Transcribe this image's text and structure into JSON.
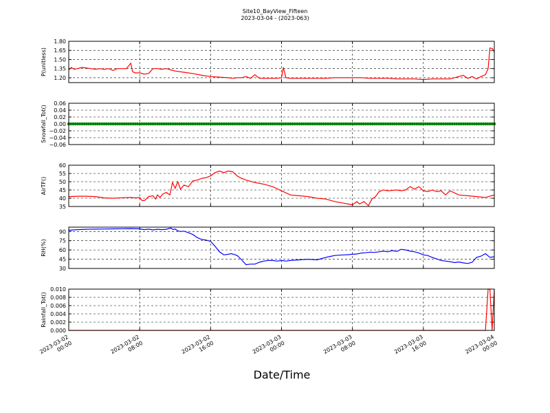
{
  "chart_data": {
    "title": "Site10_BayView_Fifteen",
    "subtitle": "2023-03-04 - (2023-063)",
    "xlabel": "Date/Time",
    "x_range_hours": [
      0,
      48
    ],
    "x_ticks": [
      {
        "h": 0,
        "line1": "2023-03-02",
        "line2": "00:00"
      },
      {
        "h": 8,
        "line1": "2023-03-02",
        "line2": "08:00"
      },
      {
        "h": 16,
        "line1": "2023-03-02",
        "line2": "16:00"
      },
      {
        "h": 24,
        "line1": "2023-03-03",
        "line2": "00:00"
      },
      {
        "h": 32,
        "line1": "2023-03-03",
        "line2": "08:00"
      },
      {
        "h": 40,
        "line1": "2023-03-03",
        "line2": "16:00"
      },
      {
        "h": 48,
        "line1": "2023-03-04",
        "line2": "00:00"
      }
    ],
    "panels": [
      {
        "id": "p",
        "type": "line",
        "ylabel": "P(unitless)",
        "color": "#ff0000",
        "marker": "none",
        "ylim": [
          1.12,
          1.8
        ],
        "yticks": [
          {
            "v": 1.2,
            "label": "1.20"
          },
          {
            "v": 1.35,
            "label": "1.35"
          },
          {
            "v": 1.5,
            "label": "1.50"
          },
          {
            "v": 1.65,
            "label": "1.65"
          },
          {
            "v": 1.8,
            "label": "1.80"
          }
        ],
        "x": [
          0,
          0.3,
          0.6,
          1,
          1.5,
          2,
          2.5,
          3,
          3.5,
          4,
          4.5,
          5,
          5.5,
          6,
          6.5,
          7,
          7.2,
          7.5,
          8,
          8.5,
          9,
          9.5,
          10,
          10.5,
          11,
          11.5,
          12,
          13,
          14,
          15,
          16,
          17,
          18,
          18.5,
          19,
          19.5,
          20,
          20.5,
          21,
          21.5,
          22,
          22.5,
          23,
          23.5,
          24,
          24.2,
          24.5,
          25,
          26,
          27,
          28,
          29,
          30,
          31,
          32,
          33,
          34,
          35,
          36,
          37,
          38,
          39,
          40,
          41,
          42,
          43,
          44,
          44.5,
          45,
          45.5,
          46,
          46.5,
          47,
          47.3,
          47.5,
          47.8,
          48
        ],
        "y": [
          1.33,
          1.37,
          1.34,
          1.35,
          1.37,
          1.36,
          1.35,
          1.34,
          1.35,
          1.34,
          1.35,
          1.32,
          1.35,
          1.35,
          1.35,
          1.44,
          1.3,
          1.28,
          1.28,
          1.26,
          1.27,
          1.35,
          1.35,
          1.34,
          1.35,
          1.33,
          1.31,
          1.29,
          1.27,
          1.24,
          1.22,
          1.21,
          1.2,
          1.19,
          1.2,
          1.2,
          1.22,
          1.19,
          1.25,
          1.19,
          1.19,
          1.19,
          1.19,
          1.19,
          1.2,
          1.37,
          1.2,
          1.19,
          1.19,
          1.19,
          1.19,
          1.19,
          1.2,
          1.2,
          1.2,
          1.2,
          1.19,
          1.19,
          1.19,
          1.18,
          1.18,
          1.18,
          1.17,
          1.18,
          1.18,
          1.18,
          1.22,
          1.24,
          1.19,
          1.22,
          1.18,
          1.22,
          1.25,
          1.35,
          1.69,
          1.68,
          1.62
        ]
      },
      {
        "id": "snowfall",
        "type": "scatter",
        "ylabel": "Snowfall_Tot()",
        "color": "#008000",
        "marker": "dot",
        "ylim": [
          -0.06,
          0.06
        ],
        "yticks": [
          {
            "v": -0.06,
            "label": "−0.06"
          },
          {
            "v": -0.04,
            "label": "−0.04"
          },
          {
            "v": -0.02,
            "label": "−0.02"
          },
          {
            "v": 0.0,
            "label": "0.00"
          },
          {
            "v": 0.02,
            "label": "0.02"
          },
          {
            "v": 0.04,
            "label": "0.04"
          },
          {
            "v": 0.06,
            "label": "0.06"
          }
        ],
        "x_start": 0,
        "x_step": 0.25,
        "x_end": 48,
        "constant_value": 0.0
      },
      {
        "id": "airtf",
        "type": "line",
        "ylabel": "AirTF()",
        "color": "#ff0000",
        "marker": "none",
        "ylim": [
          35,
          60
        ],
        "yticks": [
          {
            "v": 35,
            "label": "35"
          },
          {
            "v": 40,
            "label": "40"
          },
          {
            "v": 45,
            "label": "45"
          },
          {
            "v": 50,
            "label": "50"
          },
          {
            "v": 55,
            "label": "55"
          },
          {
            "v": 60,
            "label": "60"
          }
        ],
        "x": [
          0,
          1,
          2,
          3,
          4,
          5,
          6,
          7,
          7.5,
          8,
          8.3,
          8.6,
          9,
          9.5,
          9.8,
          10,
          10.3,
          10.6,
          11,
          11.4,
          11.7,
          12,
          12.3,
          12.6,
          13,
          13.5,
          14,
          14.5,
          15,
          15.5,
          16,
          16.5,
          17,
          17.5,
          18,
          18.5,
          19,
          19.5,
          20,
          21,
          22,
          23,
          24,
          25,
          26,
          27,
          28,
          29,
          30,
          31,
          31.5,
          32,
          32.5,
          32.8,
          33.3,
          33.8,
          34.2,
          34.6,
          35,
          35.5,
          36,
          37,
          37.5,
          38,
          38.5,
          39,
          39.5,
          40,
          40.5,
          41,
          41.5,
          42,
          42.5,
          43,
          44,
          45,
          46,
          47,
          48
        ],
        "y": [
          41,
          41.2,
          41.2,
          41,
          40.2,
          40,
          40.3,
          40.5,
          40.2,
          40.4,
          38.5,
          38.8,
          41,
          41.5,
          39.5,
          42,
          40.5,
          42.5,
          43.5,
          42,
          49.5,
          46,
          50,
          45.5,
          48,
          47,
          50.5,
          51,
          52,
          52.5,
          53.5,
          55.5,
          56.5,
          55.5,
          56.5,
          56,
          53.5,
          52,
          51,
          49.5,
          48.5,
          47,
          44.5,
          42,
          41.5,
          41,
          40,
          39.5,
          38,
          37,
          36.5,
          36,
          38,
          36.5,
          38,
          35.5,
          39.5,
          41,
          44,
          45,
          44.5,
          45,
          44.5,
          45,
          47,
          45.5,
          47,
          44.5,
          44,
          45,
          44,
          44.5,
          42,
          44.5,
          42,
          41.5,
          41,
          40.5,
          42
        ]
      },
      {
        "id": "rh",
        "type": "line",
        "ylabel": "RH(%)",
        "color": "#0000ff",
        "marker": "none",
        "ylim": [
          30,
          97
        ],
        "yticks": [
          {
            "v": 30,
            "label": "30"
          },
          {
            "v": 45,
            "label": "45"
          },
          {
            "v": 60,
            "label": "60"
          },
          {
            "v": 75,
            "label": "75"
          },
          {
            "v": 90,
            "label": "90"
          }
        ],
        "x": [
          0,
          1,
          2,
          3,
          4,
          5,
          6,
          7,
          8,
          8.5,
          9,
          9.5,
          10,
          10.5,
          11,
          11.5,
          11.8,
          12,
          12.3,
          12.6,
          13,
          13.5,
          14,
          14.5,
          15,
          15.5,
          16,
          16.5,
          17,
          17.5,
          18,
          18.3,
          18.6,
          19,
          19.5,
          20,
          20.5,
          21,
          21.5,
          22,
          22.5,
          23,
          23.5,
          24,
          24.5,
          25,
          26,
          27,
          28,
          29,
          29.5,
          30,
          30.5,
          31,
          31.5,
          32,
          32.5,
          33,
          33.5,
          34,
          34.5,
          35,
          35.5,
          36,
          36.5,
          37,
          37.5,
          38,
          38.5,
          39,
          39.5,
          40,
          40.5,
          40.8,
          41.2,
          41.6,
          42,
          42.5,
          43,
          43.5,
          44,
          44.5,
          45,
          45.5,
          46,
          46.5,
          47,
          47.5,
          48
        ],
        "y": [
          92,
          93,
          93.5,
          93.8,
          94,
          94.2,
          94.4,
          94.6,
          94.2,
          93,
          93.8,
          92.5,
          93.5,
          93,
          93.5,
          95.5,
          93,
          94,
          91,
          90,
          90.5,
          88,
          85,
          80,
          77,
          76,
          74,
          66,
          57,
          52,
          53,
          54,
          53,
          51,
          44,
          36,
          37,
          37,
          40,
          42,
          43,
          43,
          42,
          43,
          42,
          43,
          44,
          45,
          44,
          48,
          49.5,
          51,
          51.5,
          52,
          52.3,
          53,
          53.5,
          55,
          55.5,
          56.5,
          56,
          57,
          58,
          57,
          59,
          57.5,
          61,
          60,
          58,
          57,
          55,
          52,
          51,
          49,
          47,
          45,
          43,
          42,
          41,
          39.5,
          40.5,
          39,
          38,
          40,
          48,
          50,
          54,
          48,
          49
        ]
      },
      {
        "id": "rainfall",
        "type": "line",
        "ylabel": "Rainfall_Tot()",
        "color": "#ff0000",
        "marker": "none",
        "ylim": [
          0,
          0.01
        ],
        "yticks": [
          {
            "v": 0.0,
            "label": "0.000"
          },
          {
            "v": 0.002,
            "label": "0.002"
          },
          {
            "v": 0.004,
            "label": "0.004"
          },
          {
            "v": 0.006,
            "label": "0.006"
          },
          {
            "v": 0.008,
            "label": "0.008"
          },
          {
            "v": 0.01,
            "label": "0.010"
          }
        ],
        "x": [
          0,
          47,
          47.3,
          47.5,
          47.75,
          48
        ],
        "y": [
          0,
          0,
          0.01,
          0.01,
          0,
          0.01
        ]
      }
    ]
  }
}
